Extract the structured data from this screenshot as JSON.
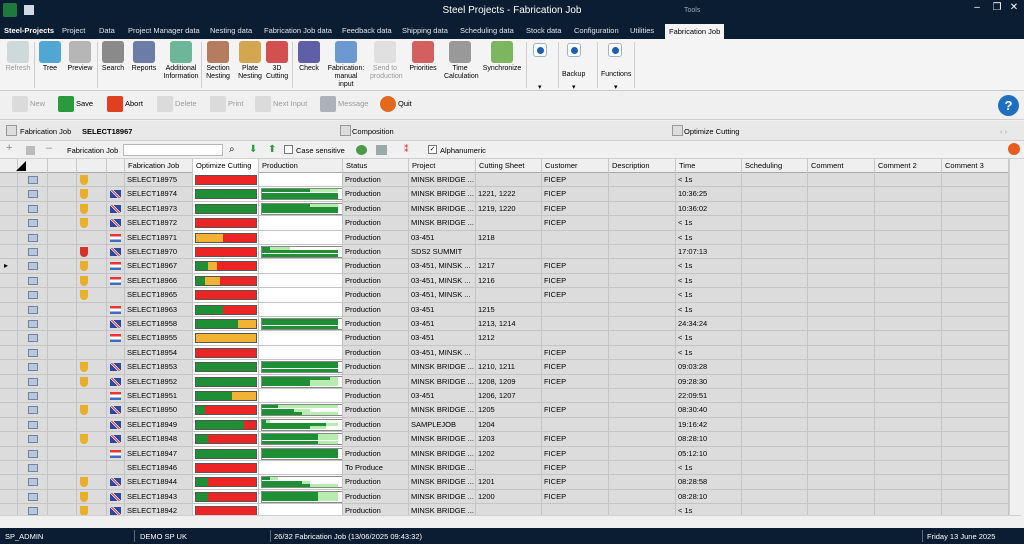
{
  "window": {
    "title": "Steel Projects - Fabrication Job",
    "tools_label": "Tools",
    "minimize": "–",
    "restore": "❐",
    "close": "✕"
  },
  "ribbon_tabs": [
    "Steel-Projects",
    "Project",
    "Data",
    "Project Manager data",
    "Nesting data",
    "Fabrication Job data",
    "Feedback data",
    "Shipping data",
    "Scheduling data",
    "Stock data",
    "Configuration",
    "Utilities",
    "Fabrication Job"
  ],
  "ribbon_buttons": [
    "Refresh",
    "Tree",
    "Preview",
    "Search",
    "Reports",
    "Additional Information",
    "Section Nesting",
    "Plate Nesting",
    "3D Cutting",
    "Check",
    "Fabrication: manual input",
    "Send to production",
    "Priorities",
    "Time Calculation",
    "Synchronize"
  ],
  "ribbon_groups": {
    "backup": "Backup",
    "functions": "Functions",
    "more": "▾"
  },
  "actions": [
    "New",
    "Save",
    "Abort",
    "Delete",
    "Print",
    "Next Input",
    "Message",
    "Quit"
  ],
  "help": "?",
  "section_bar": {
    "title": "Fabrication Job",
    "job_id": "SELECT18967",
    "composition": "Composition",
    "optimize": "Optimize Cutting",
    "nav": "‹ ›"
  },
  "filter": {
    "label": "Fabrication Job",
    "case_sensitive": "Case sensitive",
    "alphanumeric": "Alphanumeric",
    "alphanumeric_checked": "✓"
  },
  "columns": [
    "Fabrication Job",
    "Optimize Cutting",
    "Production",
    "Status",
    "Project",
    "Cutting Sheet",
    "Customer",
    "Description",
    "Time",
    "Scheduling",
    "Comment",
    "Comment 2",
    "Comment 3"
  ],
  "colors": {
    "green": "#1e8f35",
    "red": "#ee2424",
    "orange": "#f2b233",
    "light_green": "#b7ebb0",
    "dark_navy": "#0b1d33",
    "accent": "#1f6fc0"
  },
  "rows": [
    {
      "job": "SELECT18975",
      "status": "Production",
      "project": "MINSK BRIDGE ...",
      "sheet": "",
      "customer": "FICEP",
      "time": "< 1s",
      "shield": "orange",
      "flag": "",
      "opt": [
        0,
        0,
        1
      ],
      "prod": []
    },
    {
      "job": "SELECT18974",
      "status": "Production",
      "project": "MINSK BRIDGE ...",
      "sheet": "1221, 1222",
      "customer": "FICEP",
      "time": "10:36:25",
      "shield": "orange",
      "flag": "uk",
      "opt": [
        1,
        0,
        0
      ],
      "prod": [
        [
          0.95,
          0.6
        ],
        [
          0.95,
          0.95
        ],
        [
          0.95,
          0.95
        ]
      ]
    },
    {
      "job": "SELECT18973",
      "status": "Production",
      "project": "MINSK BRIDGE ...",
      "sheet": "1219, 1220",
      "customer": "FICEP",
      "time": "10:36:02",
      "shield": "orange",
      "flag": "uk",
      "opt": [
        1,
        0,
        0
      ],
      "prod": [
        [
          0.95,
          0.6
        ],
        [
          0.95,
          0.95
        ],
        [
          0.95,
          0.95
        ]
      ]
    },
    {
      "job": "SELECT18972",
      "status": "Production",
      "project": "MINSK BRIDGE ...",
      "sheet": "",
      "customer": "FICEP",
      "time": "< 1s",
      "shield": "orange",
      "flag": "uk",
      "opt": [
        0,
        0,
        1
      ],
      "prod": []
    },
    {
      "job": "SELECT18971",
      "status": "Production",
      "project": "03-451",
      "sheet": "1218",
      "customer": "",
      "time": "< 1s",
      "shield": "",
      "flag": "tr",
      "opt": [
        0,
        0.45,
        0.55
      ],
      "prod": []
    },
    {
      "job": "SELECT18970",
      "status": "Production",
      "project": "SDS2 SUMMIT",
      "sheet": "",
      "customer": "",
      "time": "17:07:13",
      "shield": "red",
      "flag": "uk",
      "opt": [
        0,
        0,
        1
      ],
      "prod": [
        [
          0.35,
          0.1
        ],
        [
          0.95,
          0.95
        ],
        [
          0.95,
          0.95
        ]
      ]
    },
    {
      "job": "SELECT18967",
      "status": "Production",
      "project": "03-451, MINSK ...",
      "sheet": "1217",
      "customer": "FICEP",
      "time": "< 1s",
      "shield": "orange",
      "flag": "tr",
      "opt": [
        0.2,
        0.15,
        0.65
      ],
      "prod": []
    },
    {
      "job": "SELECT18966",
      "status": "Production",
      "project": "03-451, MINSK ...",
      "sheet": "1216",
      "customer": "FICEP",
      "time": "< 1s",
      "shield": "orange",
      "flag": "tr",
      "opt": [
        0.15,
        0.25,
        0.6
      ],
      "prod": []
    },
    {
      "job": "SELECT18965",
      "status": "Production",
      "project": "03-451, MINSK ...",
      "sheet": "",
      "customer": "FICEP",
      "time": "< 1s",
      "shield": "orange",
      "flag": "",
      "opt": [
        0,
        0,
        1
      ],
      "prod": []
    },
    {
      "job": "SELECT18963",
      "status": "Production",
      "project": "03-451",
      "sheet": "1215",
      "customer": "",
      "time": "< 1s",
      "shield": "",
      "flag": "tr",
      "opt": [
        0.45,
        0,
        0.55
      ],
      "prod": []
    },
    {
      "job": "SELECT18958",
      "status": "Production",
      "project": "03-451",
      "sheet": "1213, 1214",
      "customer": "",
      "time": "24:34:24",
      "shield": "",
      "flag": "uk",
      "opt": [
        0.7,
        0.3,
        0
      ],
      "prod": [
        [
          0.95,
          0.95
        ],
        [
          0.95,
          0.95
        ],
        [
          0.95,
          0.95
        ]
      ]
    },
    {
      "job": "SELECT18955",
      "status": "Production",
      "project": "03-451",
      "sheet": "1212",
      "customer": "",
      "time": "< 1s",
      "shield": "",
      "flag": "tr",
      "opt": [
        0,
        1,
        0
      ],
      "prod": []
    },
    {
      "job": "SELECT18954",
      "status": "Production",
      "project": "03-451, MINSK ...",
      "sheet": "",
      "customer": "FICEP",
      "time": "< 1s",
      "shield": "",
      "flag": "",
      "opt": [
        0,
        0,
        1
      ],
      "prod": []
    },
    {
      "job": "SELECT18953",
      "status": "Production",
      "project": "MINSK BRIDGE ...",
      "sheet": "1210, 1211",
      "customer": "FICEP",
      "time": "09:03:28",
      "shield": "orange",
      "flag": "uk",
      "opt": [
        1,
        0,
        0
      ],
      "prod": [
        [
          0.95,
          0.95
        ],
        [
          0.95,
          0.95
        ],
        [
          0.95,
          0.95
        ]
      ]
    },
    {
      "job": "SELECT18952",
      "status": "Production",
      "project": "MINSK BRIDGE ...",
      "sheet": "1208, 1209",
      "customer": "FICEP",
      "time": "09:28:30",
      "shield": "orange",
      "flag": "uk",
      "opt": [
        1,
        0,
        0
      ],
      "prod": [
        [
          0.95,
          0.85
        ],
        [
          0.95,
          0.6
        ],
        [
          0.95,
          0.6
        ]
      ]
    },
    {
      "job": "SELECT18951",
      "status": "Production",
      "project": "03-451",
      "sheet": "1206, 1207",
      "customer": "",
      "time": "22:09:51",
      "shield": "",
      "flag": "tr",
      "opt": [
        0.6,
        0.4,
        0
      ],
      "prod": []
    },
    {
      "job": "SELECT18950",
      "status": "Production",
      "project": "MINSK BRIDGE ...",
      "sheet": "1205",
      "customer": "FICEP",
      "time": "08:30:40",
      "shield": "orange",
      "flag": "uk",
      "opt": [
        0.15,
        0,
        0.85
      ],
      "prod": [
        [
          0.95,
          0.2
        ],
        [
          0.6,
          0.4
        ],
        [
          0.95,
          0.5
        ]
      ]
    },
    {
      "job": "SELECT18949",
      "status": "Production",
      "project": "SAMPLEJOB",
      "sheet": "1204",
      "customer": "",
      "time": "19:16:42",
      "shield": "",
      "flag": "uk",
      "opt": [
        0.8,
        0,
        0.2
      ],
      "prod": [
        [
          0.1,
          0.05
        ],
        [
          0.95,
          0.8
        ],
        [
          0.8,
          0.6
        ]
      ]
    },
    {
      "job": "SELECT18948",
      "status": "Production",
      "project": "MINSK BRIDGE ...",
      "sheet": "1203",
      "customer": "FICEP",
      "time": "08:28:10",
      "shield": "orange",
      "flag": "uk",
      "opt": [
        0.2,
        0,
        0.8
      ],
      "prod": [
        [
          0.95,
          0.7
        ],
        [
          0.95,
          0.7
        ],
        [
          0.95,
          0.7
        ]
      ]
    },
    {
      "job": "SELECT18947",
      "status": "Production",
      "project": "MINSK BRIDGE ...",
      "sheet": "1202",
      "customer": "FICEP",
      "time": "05:12:10",
      "shield": "",
      "flag": "tr",
      "opt": [
        1,
        0,
        0
      ],
      "prod": [
        [
          0.95,
          0.95
        ],
        [
          0.95,
          0.95
        ],
        [
          0.95,
          0.95
        ]
      ]
    },
    {
      "job": "SELECT18946",
      "status": "To Produce",
      "project": "MINSK BRIDGE ...",
      "sheet": "",
      "customer": "FICEP",
      "time": "< 1s",
      "shield": "",
      "flag": "",
      "opt": [
        0,
        0,
        1
      ],
      "prod": []
    },
    {
      "job": "SELECT18944",
      "status": "Production",
      "project": "MINSK BRIDGE ...",
      "sheet": "1201",
      "customer": "FICEP",
      "time": "08:28:58",
      "shield": "orange",
      "flag": "uk",
      "opt": [
        0.2,
        0,
        0.8
      ],
      "prod": [
        [
          0.2,
          0.1
        ],
        [
          0.6,
          0.5
        ],
        [
          0.95,
          0.6
        ]
      ]
    },
    {
      "job": "SELECT18943",
      "status": "Production",
      "project": "MINSK BRIDGE ...",
      "sheet": "1200",
      "customer": "FICEP",
      "time": "08:28:10",
      "shield": "orange",
      "flag": "uk",
      "opt": [
        0.2,
        0,
        0.8
      ],
      "prod": [
        [
          0.95,
          0.7
        ],
        [
          0.95,
          0.7
        ],
        [
          0.95,
          0.7
        ]
      ]
    },
    {
      "job": "SELECT18942",
      "status": "Production",
      "project": "MINSK BRIDGE ...",
      "sheet": "",
      "customer": "",
      "time": "< 1s",
      "shield": "orange",
      "flag": "uk",
      "opt": [
        0,
        0,
        1
      ],
      "prod": []
    }
  ],
  "status_bar": {
    "user": "SP_ADMIN",
    "db": "DEMO SP UK",
    "record": "26/32 Fabrication Job (13/06/2025 09:43:32)",
    "date": "Friday 13 June 2025"
  }
}
